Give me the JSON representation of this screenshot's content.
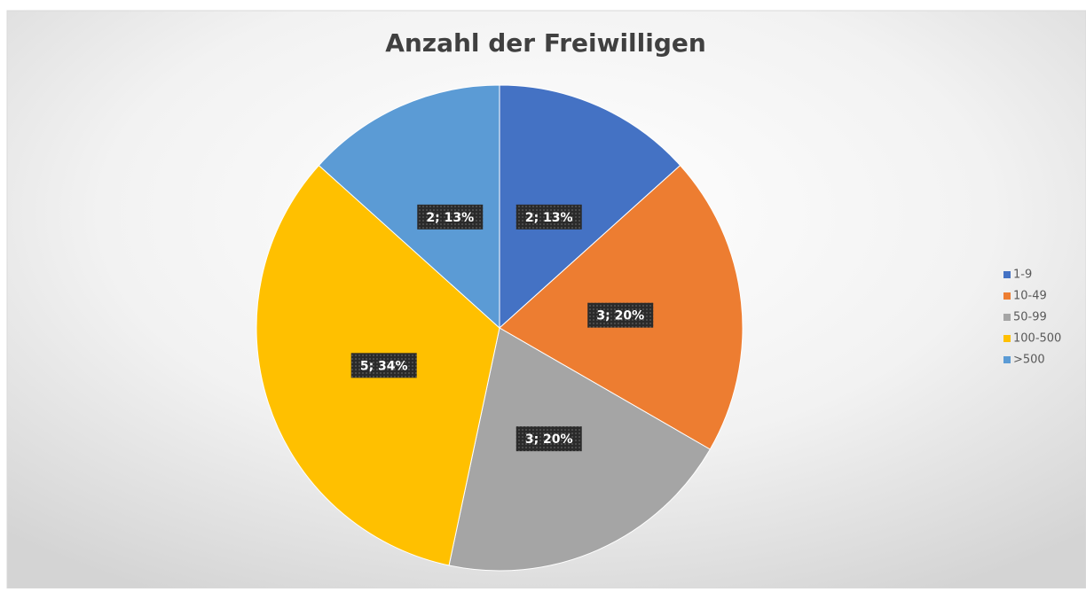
{
  "chart_data": {
    "type": "pie",
    "title": "Anzahl der Freiwilligen",
    "categories": [
      "1-9",
      "10-49",
      "50-99",
      "100-500",
      ">500"
    ],
    "values": [
      2,
      3,
      3,
      5,
      2
    ],
    "value_labels": [
      "2; 13%",
      "3; 20%",
      "3; 20%",
      "5; 34%",
      "2; 13%"
    ],
    "colors": [
      "#4472c4",
      "#ed7d31",
      "#a5a5a5",
      "#ffc000",
      "#5b9bd5"
    ],
    "legend": "right"
  }
}
